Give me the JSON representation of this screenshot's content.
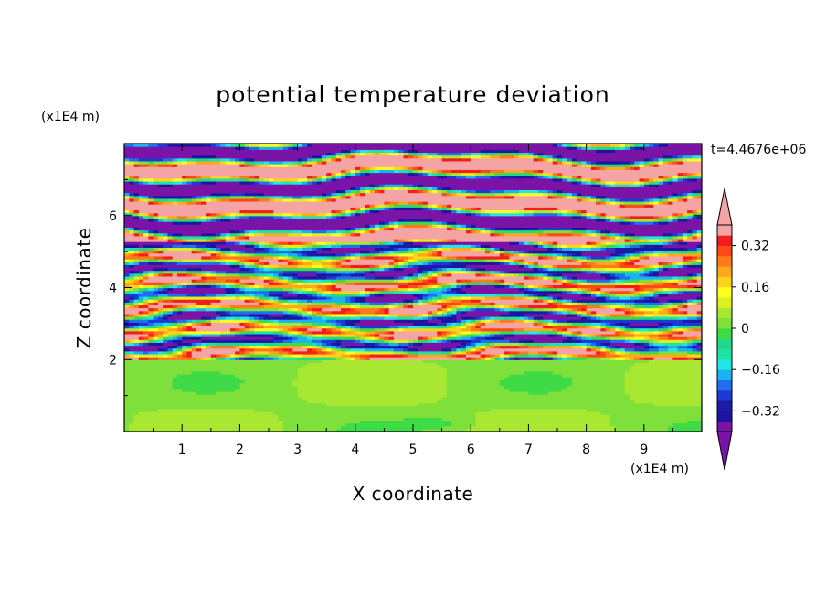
{
  "chart_data": {
    "type": "heatmap",
    "title": "potential temperature deviation",
    "time_label": "t=4.4676e+06",
    "x_axis": {
      "label": "X coordinate",
      "unit_label": "(x1E4 m)",
      "range": [
        0,
        10
      ],
      "ticks": [
        "1",
        "2",
        "3",
        "4",
        "5",
        "6",
        "7",
        "8",
        "9"
      ]
    },
    "y_axis": {
      "label": "Z coordinate",
      "unit_label": "(x1E4 m)",
      "range": [
        0,
        8
      ],
      "ticks": [
        "2",
        "4",
        "6"
      ]
    },
    "colorbar": {
      "levels": [
        -0.4,
        -0.36,
        -0.32,
        -0.28,
        -0.24,
        -0.2,
        -0.16,
        -0.12,
        -0.08,
        -0.04,
        0,
        0.04,
        0.08,
        0.12,
        0.16,
        0.2,
        0.24,
        0.28,
        0.32,
        0.36,
        0.4
      ],
      "tick_labels": [
        {
          "value": 0.32,
          "label": "0.32"
        },
        {
          "value": 0.16,
          "label": "0.16"
        },
        {
          "value": 0,
          "label": "0"
        },
        {
          "value": -0.16,
          "label": "−0.16"
        },
        {
          "value": -0.32,
          "label": "−0.32"
        }
      ],
      "colors": [
        "#7b14a6",
        "#1f14a0",
        "#1e1aa8",
        "#1e3ad6",
        "#1f6ff0",
        "#19b4f0",
        "#23e6e6",
        "#20e2a8",
        "#20d889",
        "#3fdb46",
        "#7fe03a",
        "#a8e832",
        "#dcf020",
        "#ffff1c",
        "#ffd21c",
        "#ffa81c",
        "#ff7a1a",
        "#ff4a18",
        "#f51c1c",
        "#f4a4a4"
      ],
      "under_color": "#7b14a6",
      "over_color": "#f4a4a4"
    },
    "regions": [
      {
        "z_range": [
          5.3,
          8.0
        ],
        "description_level": "alternating purple and pink bands"
      },
      {
        "z_range": [
          2.0,
          5.3
        ],
        "description_level": "mixed full-range bands"
      },
      {
        "z_range": [
          0.0,
          2.0
        ],
        "description_level": "near zero green"
      }
    ]
  }
}
